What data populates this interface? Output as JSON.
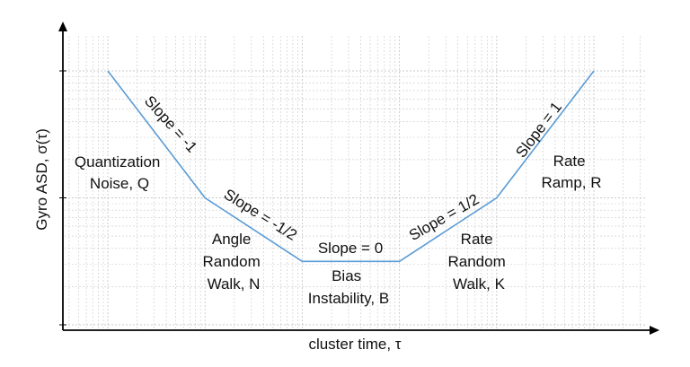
{
  "chart_data": {
    "type": "line",
    "xlabel": "cluster time, τ",
    "ylabel": "Gyro ASD, σ(τ)",
    "x_scale": "log",
    "y_scale": "log",
    "grid": true,
    "tick_labels": false,
    "series": [
      {
        "points": [
          {
            "x": 0.1,
            "y": 10
          },
          {
            "x": 1,
            "y": 1
          },
          {
            "x": 10,
            "y": 0.316
          },
          {
            "x": 100,
            "y": 0.316
          },
          {
            "x": 1000,
            "y": 1
          },
          {
            "x": 10000,
            "y": 10
          }
        ]
      }
    ],
    "annotations": {
      "slopes": [
        {
          "text": "Slope = -1"
        },
        {
          "text": "Slope = -1/2"
        },
        {
          "text": "Slope = 0"
        },
        {
          "text": "Slope = 1/2"
        },
        {
          "text": "Slope = 1"
        }
      ],
      "regions": [
        {
          "lines": [
            "Quantization",
            "Noise, Q"
          ]
        },
        {
          "lines": [
            "Angle",
            "Random",
            "Walk, N"
          ]
        },
        {
          "lines": [
            "Bias",
            "Instability, B"
          ]
        },
        {
          "lines": [
            "Rate",
            "Random",
            "Walk, K"
          ]
        },
        {
          "lines": [
            "Rate",
            "Ramp, R"
          ]
        }
      ]
    },
    "colors": {
      "line": "#5b9bd5",
      "axis": "#000000",
      "grid": "#c8c8c8"
    }
  }
}
